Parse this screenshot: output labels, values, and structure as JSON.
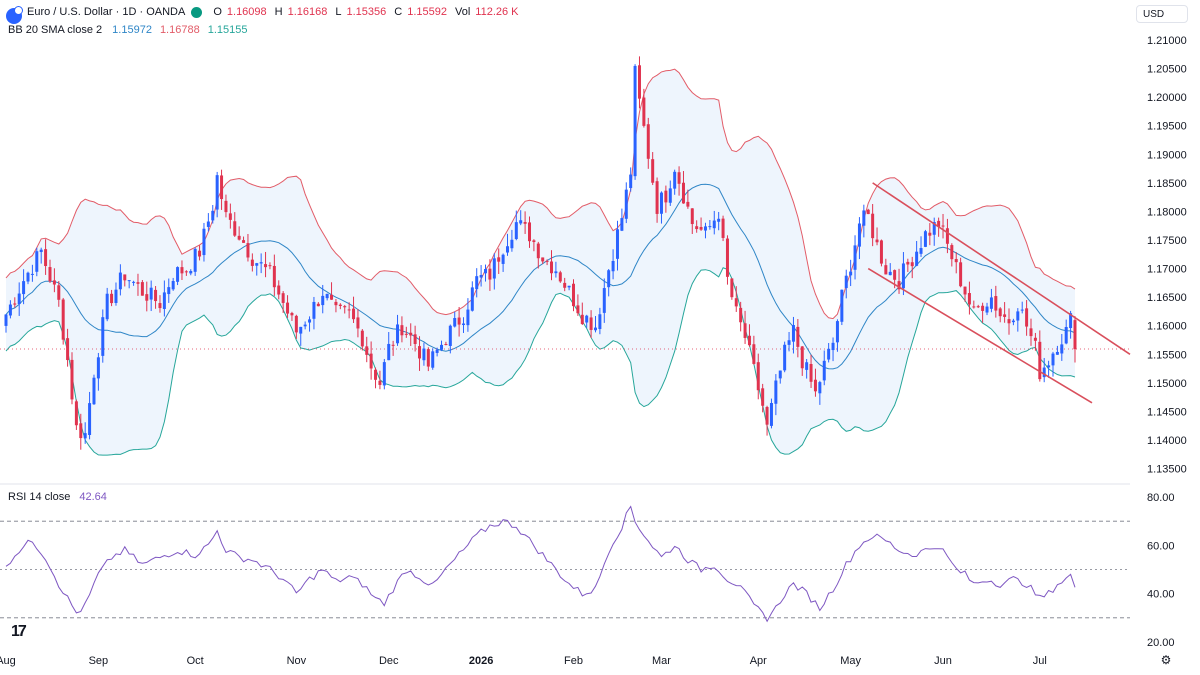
{
  "header": {
    "symbol": "Euro / U.S. Dollar · 1D · OANDA",
    "o_label": "O",
    "o_value": "1.16098",
    "h_label": "H",
    "h_value": "1.16168",
    "l_label": "L",
    "l_value": "1.15356",
    "c_label": "C",
    "c_value": "1.15592",
    "vol_label": "Vol",
    "vol_value": "112.26 K",
    "bb_label": "BB 20 SMA close 2",
    "bb_basis": "1.15972",
    "bb_upper": "1.16788",
    "bb_lower": "1.15155",
    "currency": "USD"
  },
  "rsi_legend": {
    "label": "RSI 14 close",
    "value": "42.64"
  },
  "colors": {
    "up": "#2962ff",
    "down": "#e0334f",
    "bb_upper": "#e25c68",
    "bb_lower": "#26a69a",
    "bb_basis": "#2f86c7",
    "bb_fill": "#eef5fd",
    "rsi": "#7e57c2",
    "channel": "#d94f5c",
    "text": "#131722"
  },
  "icons": {
    "logo": "euro-usd-flag-icon",
    "brand": "tradingview-logo-icon",
    "settings": "gear-icon"
  },
  "chart_data": [
    {
      "type": "candlestick",
      "title": "Euro / U.S. Dollar · 1D · OANDA",
      "y_ticks": [
        "1.21000",
        "1.20500",
        "1.20000",
        "1.19500",
        "1.19000",
        "1.18500",
        "1.18000",
        "1.17500",
        "1.17000",
        "1.16500",
        "1.16000",
        "1.15500",
        "1.15000",
        "1.14500",
        "1.14000",
        "1.13500"
      ],
      "ylim": [
        1.1325,
        1.2125
      ],
      "x_ticks": [
        "Aug",
        "Sep",
        "Oct",
        "Nov",
        "Dec",
        "2026",
        "Feb",
        "Mar",
        "Apr",
        "May",
        "Jun",
        "Jul"
      ],
      "month_index": [
        0,
        21,
        43,
        66,
        87,
        108,
        129,
        149,
        171,
        192,
        213,
        235
      ],
      "close_path": [
        [
          0,
          1.162
        ],
        [
          4,
          1.168
        ],
        [
          8,
          1.173
        ],
        [
          12,
          1.164
        ],
        [
          14,
          1.154
        ],
        [
          16,
          1.142
        ],
        [
          18,
          1.141
        ],
        [
          20,
          1.152
        ],
        [
          23,
          1.164
        ],
        [
          27,
          1.169
        ],
        [
          31,
          1.166
        ],
        [
          35,
          1.164
        ],
        [
          38,
          1.169
        ],
        [
          41,
          1.17
        ],
        [
          44,
          1.173
        ],
        [
          47,
          1.181
        ],
        [
          48,
          1.186
        ],
        [
          50,
          1.179
        ],
        [
          53,
          1.176
        ],
        [
          56,
          1.172
        ],
        [
          60,
          1.169
        ],
        [
          63,
          1.164
        ],
        [
          66,
          1.159
        ],
        [
          69,
          1.162
        ],
        [
          72,
          1.166
        ],
        [
          75,
          1.162
        ],
        [
          78,
          1.162
        ],
        [
          81,
          1.158
        ],
        [
          83,
          1.153
        ],
        [
          85,
          1.15
        ],
        [
          87,
          1.156
        ],
        [
          90,
          1.16
        ],
        [
          93,
          1.157
        ],
        [
          96,
          1.153
        ],
        [
          100,
          1.158
        ],
        [
          104,
          1.162
        ],
        [
          107,
          1.168
        ],
        [
          110,
          1.169
        ],
        [
          113,
          1.174
        ],
        [
          116,
          1.178
        ],
        [
          119,
          1.176
        ],
        [
          122,
          1.172
        ],
        [
          125,
          1.17
        ],
        [
          128,
          1.166
        ],
        [
          131,
          1.162
        ],
        [
          134,
          1.16
        ],
        [
          137,
          1.17
        ],
        [
          140,
          1.179
        ],
        [
          142,
          1.187
        ],
        [
          143,
          1.204
        ],
        [
          144,
          1.199
        ],
        [
          146,
          1.19
        ],
        [
          148,
          1.181
        ],
        [
          150,
          1.183
        ],
        [
          152,
          1.188
        ],
        [
          154,
          1.183
        ],
        [
          156,
          1.178
        ],
        [
          159,
          1.176
        ],
        [
          162,
          1.18
        ],
        [
          164,
          1.168
        ],
        [
          166,
          1.162
        ],
        [
          168,
          1.158
        ],
        [
          170,
          1.152
        ],
        [
          172,
          1.146
        ],
        [
          173,
          1.142
        ],
        [
          175,
          1.149
        ],
        [
          177,
          1.155
        ],
        [
          179,
          1.159
        ],
        [
          181,
          1.154
        ],
        [
          184,
          1.148
        ],
        [
          186,
          1.153
        ],
        [
          188,
          1.157
        ],
        [
          190,
          1.165
        ],
        [
          192,
          1.171
        ],
        [
          194,
          1.178
        ],
        [
          196,
          1.179
        ],
        [
          198,
          1.174
        ],
        [
          200,
          1.17
        ],
        [
          203,
          1.168
        ],
        [
          206,
          1.172
        ],
        [
          209,
          1.176
        ],
        [
          212,
          1.178
        ],
        [
          214,
          1.174
        ],
        [
          216,
          1.17
        ],
        [
          218,
          1.166
        ],
        [
          220,
          1.162
        ],
        [
          222,
          1.164
        ],
        [
          224,
          1.165
        ],
        [
          226,
          1.162
        ],
        [
          228,
          1.161
        ],
        [
          230,
          1.164
        ],
        [
          232,
          1.16
        ],
        [
          234,
          1.156
        ],
        [
          235,
          1.152
        ],
        [
          237,
          1.154
        ],
        [
          239,
          1.157
        ],
        [
          241,
          1.159
        ],
        [
          242,
          1.161
        ],
        [
          243,
          1.1559
        ]
      ],
      "last_price": 1.15592
    },
    {
      "type": "line",
      "title": "RSI 14 close",
      "y_ticks": [
        "80.00",
        "60.00",
        "40.00",
        "20.00"
      ],
      "ylim": [
        15,
        85
      ],
      "levels": [
        70,
        50,
        30
      ],
      "path": [
        [
          0,
          52
        ],
        [
          3,
          58
        ],
        [
          6,
          62
        ],
        [
          9,
          55
        ],
        [
          12,
          44
        ],
        [
          14,
          38
        ],
        [
          16,
          32
        ],
        [
          18,
          35
        ],
        [
          21,
          48
        ],
        [
          24,
          55
        ],
        [
          27,
          58
        ],
        [
          31,
          52
        ],
        [
          35,
          55
        ],
        [
          39,
          58
        ],
        [
          43,
          56
        ],
        [
          46,
          60
        ],
        [
          48,
          66
        ],
        [
          50,
          58
        ],
        [
          53,
          55
        ],
        [
          56,
          54
        ],
        [
          60,
          50
        ],
        [
          63,
          46
        ],
        [
          66,
          40
        ],
        [
          69,
          46
        ],
        [
          72,
          50
        ],
        [
          75,
          45
        ],
        [
          78,
          47
        ],
        [
          81,
          44
        ],
        [
          84,
          38
        ],
        [
          86,
          36
        ],
        [
          88,
          42
        ],
        [
          91,
          50
        ],
        [
          94,
          47
        ],
        [
          97,
          43
        ],
        [
          100,
          50
        ],
        [
          104,
          58
        ],
        [
          107,
          64
        ],
        [
          110,
          68
        ],
        [
          113,
          70
        ],
        [
          116,
          68
        ],
        [
          119,
          62
        ],
        [
          122,
          56
        ],
        [
          125,
          50
        ],
        [
          128,
          44
        ],
        [
          131,
          40
        ],
        [
          134,
          42
        ],
        [
          137,
          58
        ],
        [
          140,
          68
        ],
        [
          142,
          76
        ],
        [
          143,
          70
        ],
        [
          146,
          62
        ],
        [
          149,
          55
        ],
        [
          152,
          60
        ],
        [
          155,
          54
        ],
        [
          158,
          50
        ],
        [
          161,
          52
        ],
        [
          164,
          46
        ],
        [
          166,
          44
        ],
        [
          168,
          40
        ],
        [
          170,
          35
        ],
        [
          173,
          30
        ],
        [
          175,
          34
        ],
        [
          177,
          40
        ],
        [
          179,
          44
        ],
        [
          182,
          40
        ],
        [
          185,
          34
        ],
        [
          188,
          42
        ],
        [
          191,
          52
        ],
        [
          194,
          60
        ],
        [
          197,
          64
        ],
        [
          200,
          62
        ],
        [
          203,
          58
        ],
        [
          206,
          56
        ],
        [
          209,
          58
        ],
        [
          212,
          60
        ],
        [
          214,
          55
        ],
        [
          216,
          50
        ],
        [
          218,
          48
        ],
        [
          220,
          44
        ],
        [
          223,
          46
        ],
        [
          226,
          44
        ],
        [
          229,
          46
        ],
        [
          232,
          44
        ],
        [
          235,
          38
        ],
        [
          237,
          40
        ],
        [
          239,
          44
        ],
        [
          241,
          46
        ],
        [
          242,
          48
        ],
        [
          243,
          42.64
        ]
      ]
    }
  ]
}
